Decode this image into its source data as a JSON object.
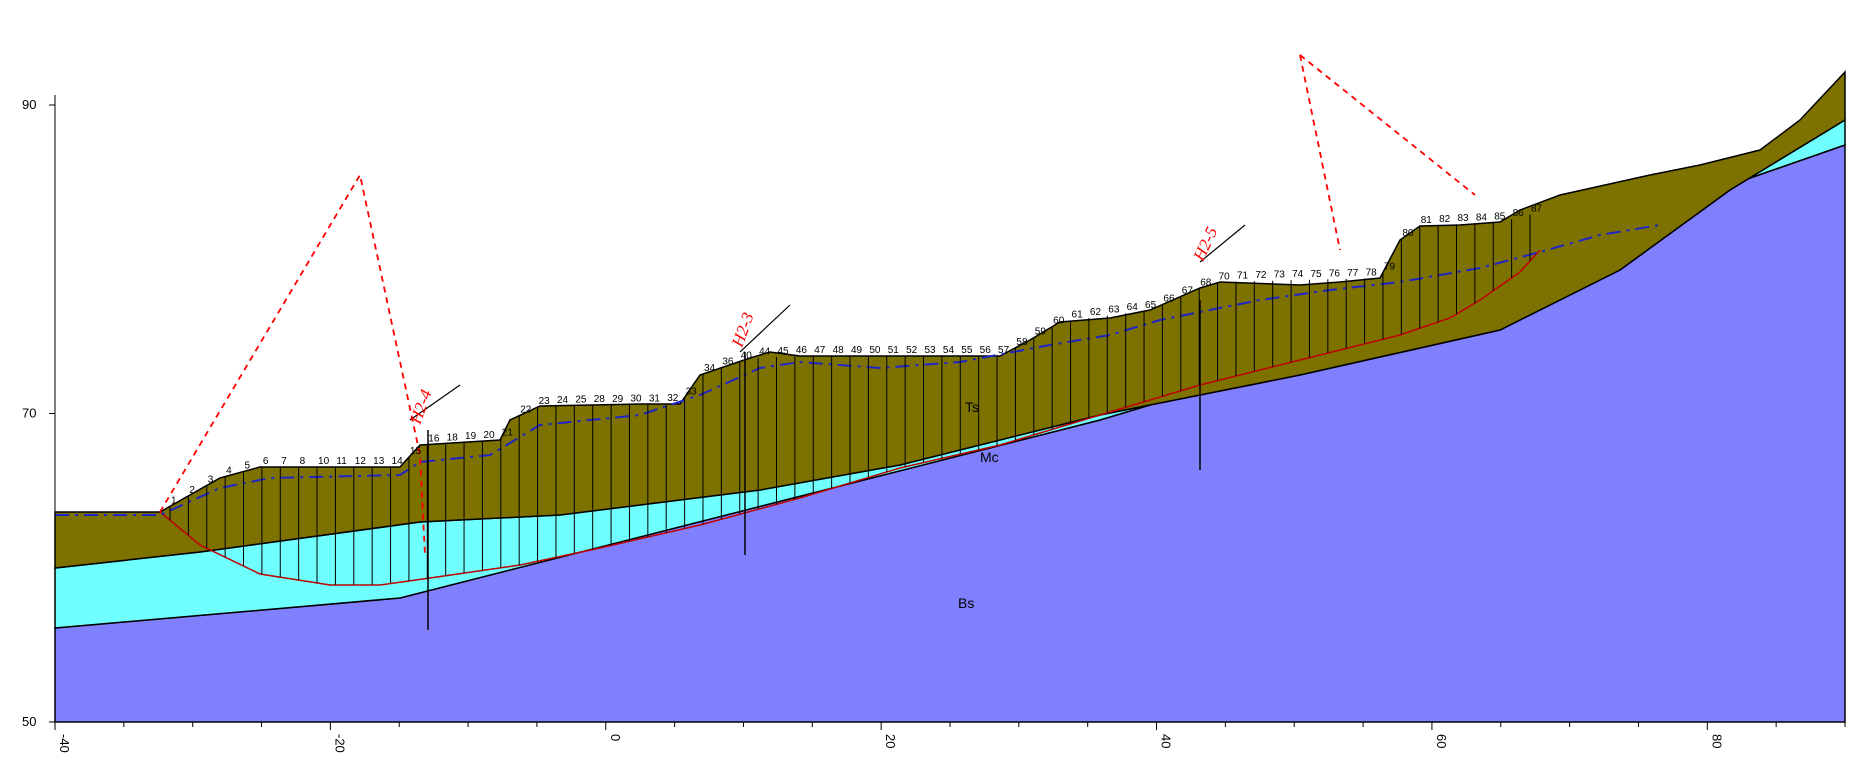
{
  "colors": {
    "background": "#ffffff",
    "layer_fill": "#7d7100",
    "clay_fill": "#70ffff",
    "bedrock_fill": "#8080ff",
    "water_table": "#1f25c7",
    "slip_circle": "#ff0000",
    "outline": "#000000"
  },
  "axes": {
    "y_ticks": [
      {
        "value": 90,
        "label": "90"
      },
      {
        "value": 70,
        "label": "70"
      },
      {
        "value": 50,
        "label": "50"
      }
    ],
    "x_ticks": [
      {
        "value": -40,
        "label": "-40"
      },
      {
        "value": -20,
        "label": "-20"
      },
      {
        "value": 0,
        "label": "0"
      },
      {
        "value": 20,
        "label": "20"
      },
      {
        "value": 40,
        "label": "40"
      },
      {
        "value": 60,
        "label": "60"
      },
      {
        "value": 80,
        "label": "80"
      }
    ]
  },
  "materials": {
    "fill": "Ts",
    "clay": "Mc",
    "rock": "Bs"
  },
  "slip_surfaces": [
    {
      "id": "a",
      "label": "H2-4"
    },
    {
      "id": "b",
      "label": "H2-3"
    },
    {
      "id": "c",
      "label": "H2-5"
    }
  ],
  "column_labels": [
    "1",
    "2",
    "3",
    "4",
    "5",
    "6",
    "7",
    "8",
    "10",
    "11",
    "12",
    "13",
    "14",
    "15",
    "16",
    "18",
    "19",
    "20",
    "21",
    "22",
    "23",
    "24",
    "25",
    "28",
    "29",
    "30",
    "31",
    "32",
    "33",
    "34",
    "36",
    "40",
    "44",
    "45",
    "46",
    "47",
    "48",
    "49",
    "50",
    "51",
    "52",
    "53",
    "54",
    "55",
    "56",
    "57",
    "58",
    "59",
    "60",
    "61",
    "62",
    "63",
    "64",
    "65",
    "66",
    "67",
    "68",
    "70",
    "71",
    "72",
    "73",
    "74",
    "75",
    "76",
    "77",
    "78",
    "79",
    "80",
    "81",
    "82",
    "83",
    "84",
    "85",
    "86",
    "87"
  ]
}
